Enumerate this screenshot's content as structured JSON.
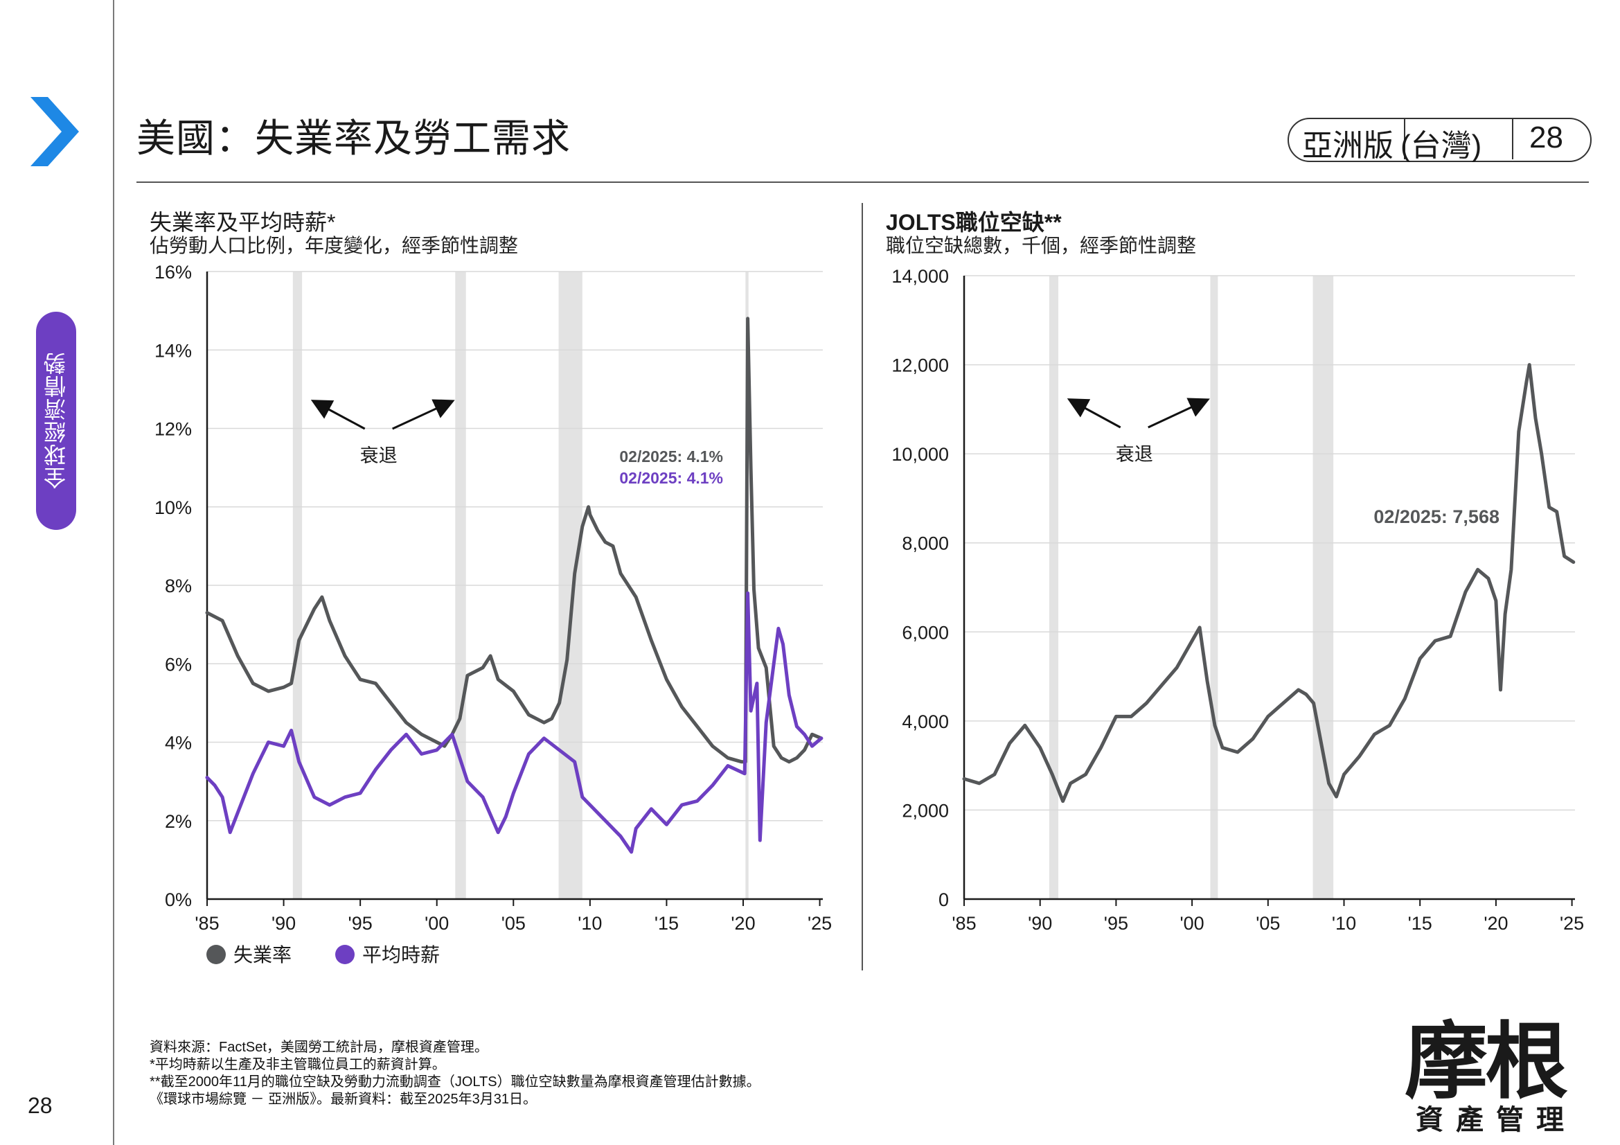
{
  "page": {
    "title": "美國：失業率及勞工需求",
    "section_tab": "全球經濟情勢",
    "badge_label": "亞洲版",
    "badge_region": "(台灣)",
    "badge_page": "28",
    "page_number": "28",
    "logo_main": "摩根",
    "logo_sub": "資產管理",
    "footnotes": [
      "資料來源：FactSet，美國勞工統計局，摩根資產管理。",
      "*平均時薪以生產及非主管職位員工的薪資計算。",
      "**截至2000年11月的職位空缺及勞動力流動調查（JOLTS）職位空缺數量為摩根資產管理估計數據。",
      "《環球市場綜覽 － 亞洲版》。最新資料：截至2025年3月31日。"
    ]
  },
  "colors": {
    "unemployment": "#555759",
    "wages": "#6d3fc2",
    "recession": "#e3e3e3",
    "accent_blue": "#1e88e5"
  },
  "chart_data": [
    {
      "type": "line",
      "title": "失業率及平均時薪*",
      "subtitle": "佔勞動人口比例，年度變化，經季節性調整",
      "xlim": [
        1985,
        2025.2
      ],
      "ylim": [
        0,
        16
      ],
      "x_tick_labels": [
        "'85",
        "'90",
        "'95",
        "'00",
        "'05",
        "'10",
        "'15",
        "'20",
        "'25"
      ],
      "x_tick_values": [
        1985,
        1990,
        1995,
        2000,
        2005,
        2010,
        2015,
        2020,
        2025
      ],
      "y_tick_labels": [
        "0%",
        "2%",
        "4%",
        "6%",
        "8%",
        "10%",
        "12%",
        "14%",
        "16%"
      ],
      "y_tick_values": [
        0,
        2,
        4,
        6,
        8,
        10,
        12,
        14,
        16
      ],
      "grid": true,
      "legend": "bottom-left",
      "recession_periods": [
        [
          1990.6,
          1991.2
        ],
        [
          2001.2,
          2001.9
        ],
        [
          2007.95,
          2009.5
        ],
        [
          2020.15,
          2020.35
        ]
      ],
      "recession_label": "衰退",
      "annotations": [
        "02/2025: 4.1%",
        "02/2025: 4.1%"
      ],
      "series": [
        {
          "name": "失業率",
          "points": [
            [
              1985,
              7.3
            ],
            [
              1986,
              7.1
            ],
            [
              1987,
              6.2
            ],
            [
              1988,
              5.5
            ],
            [
              1989,
              5.3
            ],
            [
              1990,
              5.4
            ],
            [
              1990.5,
              5.5
            ],
            [
              1991,
              6.6
            ],
            [
              1992,
              7.4
            ],
            [
              1992.5,
              7.7
            ],
            [
              1993,
              7.1
            ],
            [
              1994,
              6.2
            ],
            [
              1995,
              5.6
            ],
            [
              1996,
              5.5
            ],
            [
              1997,
              5.0
            ],
            [
              1998,
              4.5
            ],
            [
              1999,
              4.2
            ],
            [
              2000,
              4.0
            ],
            [
              2000.5,
              3.9
            ],
            [
              2001,
              4.2
            ],
            [
              2001.5,
              4.6
            ],
            [
              2002,
              5.7
            ],
            [
              2003,
              5.9
            ],
            [
              2003.5,
              6.2
            ],
            [
              2004,
              5.6
            ],
            [
              2005,
              5.3
            ],
            [
              2006,
              4.7
            ],
            [
              2007,
              4.5
            ],
            [
              2007.5,
              4.6
            ],
            [
              2008,
              5.0
            ],
            [
              2008.5,
              6.1
            ],
            [
              2009,
              8.3
            ],
            [
              2009.5,
              9.5
            ],
            [
              2009.9,
              10.0
            ],
            [
              2010,
              9.8
            ],
            [
              2010.5,
              9.4
            ],
            [
              2011,
              9.1
            ],
            [
              2011.5,
              9.0
            ],
            [
              2012,
              8.3
            ],
            [
              2013,
              7.7
            ],
            [
              2014,
              6.6
            ],
            [
              2015,
              5.6
            ],
            [
              2016,
              4.9
            ],
            [
              2017,
              4.4
            ],
            [
              2018,
              3.9
            ],
            [
              2019,
              3.6
            ],
            [
              2019.9,
              3.5
            ],
            [
              2020.15,
              3.5
            ],
            [
              2020.3,
              14.8
            ],
            [
              2020.5,
              11.0
            ],
            [
              2020.7,
              7.9
            ],
            [
              2021,
              6.4
            ],
            [
              2021.5,
              5.9
            ],
            [
              2022,
              3.9
            ],
            [
              2022.5,
              3.6
            ],
            [
              2023,
              3.5
            ],
            [
              2023.5,
              3.6
            ],
            [
              2024,
              3.8
            ],
            [
              2024.5,
              4.2
            ],
            [
              2025.1,
              4.1
            ]
          ]
        },
        {
          "name": "平均時薪",
          "points": [
            [
              1985,
              3.1
            ],
            [
              1985.5,
              2.9
            ],
            [
              1986,
              2.6
            ],
            [
              1986.5,
              1.7
            ],
            [
              1987,
              2.2
            ],
            [
              1988,
              3.2
            ],
            [
              1989,
              4.0
            ],
            [
              1990,
              3.9
            ],
            [
              1990.5,
              4.3
            ],
            [
              1991,
              3.5
            ],
            [
              1992,
              2.6
            ],
            [
              1993,
              2.4
            ],
            [
              1994,
              2.6
            ],
            [
              1995,
              2.7
            ],
            [
              1996,
              3.3
            ],
            [
              1997,
              3.8
            ],
            [
              1998,
              4.2
            ],
            [
              1999,
              3.7
            ],
            [
              2000,
              3.8
            ],
            [
              2001,
              4.2
            ],
            [
              2002,
              3.0
            ],
            [
              2003,
              2.6
            ],
            [
              2004,
              1.7
            ],
            [
              2004.5,
              2.1
            ],
            [
              2005,
              2.7
            ],
            [
              2006,
              3.7
            ],
            [
              2007,
              4.1
            ],
            [
              2008,
              3.8
            ],
            [
              2009,
              3.5
            ],
            [
              2009.5,
              2.6
            ],
            [
              2010,
              2.4
            ],
            [
              2011,
              2.0
            ],
            [
              2012,
              1.6
            ],
            [
              2012.7,
              1.2
            ],
            [
              2013,
              1.8
            ],
            [
              2014,
              2.3
            ],
            [
              2015,
              1.9
            ],
            [
              2016,
              2.4
            ],
            [
              2017,
              2.5
            ],
            [
              2018,
              2.9
            ],
            [
              2019,
              3.4
            ],
            [
              2020.1,
              3.2
            ],
            [
              2020.3,
              7.8
            ],
            [
              2020.5,
              4.8
            ],
            [
              2020.9,
              5.5
            ],
            [
              2021.1,
              1.5
            ],
            [
              2021.5,
              4.5
            ],
            [
              2022,
              6.0
            ],
            [
              2022.3,
              6.9
            ],
            [
              2022.6,
              6.5
            ],
            [
              2023,
              5.2
            ],
            [
              2023.5,
              4.4
            ],
            [
              2024,
              4.2
            ],
            [
              2024.5,
              3.9
            ],
            [
              2025.1,
              4.1
            ]
          ]
        }
      ]
    },
    {
      "type": "line",
      "title": "JOLTS職位空缺**",
      "subtitle": "職位空缺總數，千個，經季節性調整",
      "xlim": [
        1985,
        2025.2
      ],
      "ylim": [
        0,
        14000
      ],
      "x_tick_labels": [
        "'85",
        "'90",
        "'95",
        "'00",
        "'05",
        "'10",
        "'15",
        "'20",
        "'25"
      ],
      "x_tick_values": [
        1985,
        1990,
        1995,
        2000,
        2005,
        2010,
        2015,
        2020,
        2025
      ],
      "y_tick_labels": [
        "0",
        "2,000",
        "4,000",
        "6,000",
        "8,000",
        "10,000",
        "12,000",
        "14,000"
      ],
      "y_tick_values": [
        0,
        2000,
        4000,
        6000,
        8000,
        10000,
        12000,
        14000
      ],
      "grid": true,
      "recession_periods": [
        [
          1990.6,
          1991.2
        ],
        [
          2001.2,
          2001.7
        ],
        [
          2007.95,
          2009.3
        ]
      ],
      "recession_label": "衰退",
      "annotations": [
        "02/2025: 7,568"
      ],
      "series": [
        {
          "name": "JOLTS職位空缺",
          "points": [
            [
              1985,
              2700
            ],
            [
              1986,
              2600
            ],
            [
              1987,
              2800
            ],
            [
              1988,
              3500
            ],
            [
              1989,
              3900
            ],
            [
              1990,
              3400
            ],
            [
              1990.8,
              2800
            ],
            [
              1991.5,
              2200
            ],
            [
              1992,
              2600
            ],
            [
              1993,
              2800
            ],
            [
              1994,
              3400
            ],
            [
              1995,
              4100
            ],
            [
              1996,
              4100
            ],
            [
              1997,
              4400
            ],
            [
              1998,
              4800
            ],
            [
              1999,
              5200
            ],
            [
              2000,
              5800
            ],
            [
              2000.5,
              6100
            ],
            [
              2001,
              4900
            ],
            [
              2001.5,
              3900
            ],
            [
              2002,
              3400
            ],
            [
              2003,
              3300
            ],
            [
              2004,
              3600
            ],
            [
              2005,
              4100
            ],
            [
              2006,
              4400
            ],
            [
              2007,
              4700
            ],
            [
              2007.5,
              4600
            ],
            [
              2008,
              4400
            ],
            [
              2008.5,
              3500
            ],
            [
              2009,
              2600
            ],
            [
              2009.5,
              2300
            ],
            [
              2010,
              2800
            ],
            [
              2011,
              3200
            ],
            [
              2012,
              3700
            ],
            [
              2013,
              3900
            ],
            [
              2014,
              4500
            ],
            [
              2015,
              5400
            ],
            [
              2016,
              5800
            ],
            [
              2017,
              5900
            ],
            [
              2018,
              6900
            ],
            [
              2018.8,
              7400
            ],
            [
              2019.5,
              7200
            ],
            [
              2020,
              6700
            ],
            [
              2020.3,
              4700
            ],
            [
              2020.6,
              6400
            ],
            [
              2021,
              7400
            ],
            [
              2021.5,
              10500
            ],
            [
              2022,
              11600
            ],
            [
              2022.2,
              12000
            ],
            [
              2022.6,
              10800
            ],
            [
              2023,
              10000
            ],
            [
              2023.5,
              8800
            ],
            [
              2024,
              8700
            ],
            [
              2024.5,
              7700
            ],
            [
              2025.1,
              7568
            ]
          ]
        }
      ]
    }
  ]
}
